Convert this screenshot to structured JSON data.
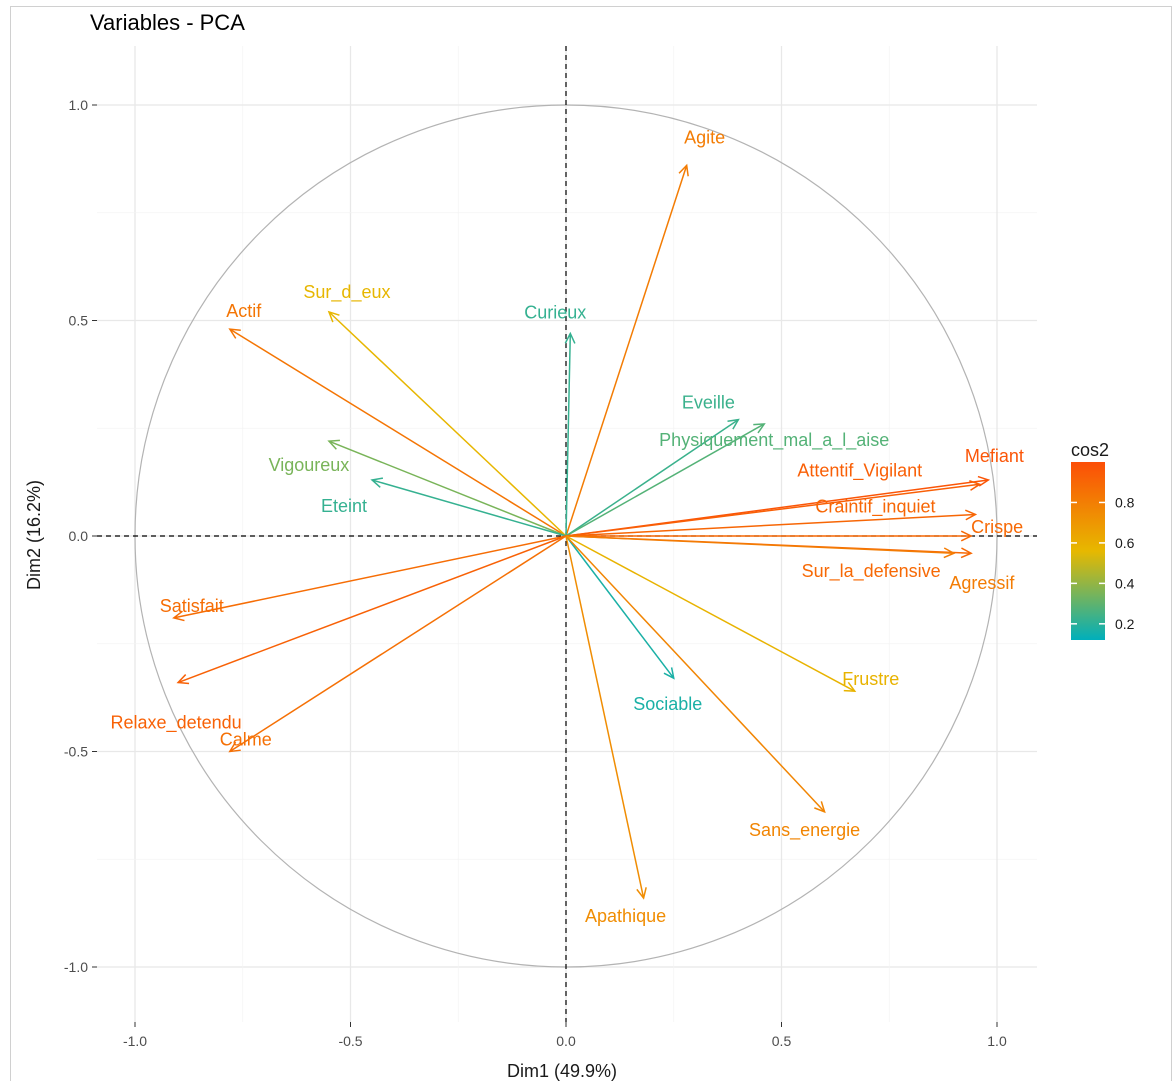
{
  "chart_data": {
    "type": "scatter",
    "title": "Variables - PCA",
    "xlabel": "Dim1 (49.9%)",
    "ylabel": "Dim2 (16.2%)",
    "xlim": [
      -1.0,
      1.0
    ],
    "ylim": [
      -1.0,
      1.0
    ],
    "x_ticks": [
      -1.0,
      -0.5,
      0.0,
      0.5,
      1.0
    ],
    "y_ticks": [
      -1.0,
      -0.5,
      0.0,
      0.5,
      1.0
    ],
    "x_tick_labels": [
      "-1.0",
      "-0.5",
      "0.0",
      "0.5",
      "1.0"
    ],
    "y_tick_labels": [
      "-1.0",
      "-0.5",
      "0.0",
      "0.5",
      "1.0"
    ],
    "grid": true,
    "correlation_circle": true,
    "legend": {
      "title": "cos2",
      "placement": "right",
      "ticks": [
        0.2,
        0.4,
        0.6,
        0.8
      ],
      "tick_labels": [
        "0.2",
        "0.4",
        "0.6",
        "0.8"
      ],
      "range": [
        0.12,
        1.0
      ],
      "colors": [
        "#00AFBB",
        "#E7B800",
        "#FC4E07"
      ]
    },
    "variables": [
      {
        "name": "Agite",
        "x": 0.28,
        "y": 0.86,
        "cos2": 0.81
      },
      {
        "name": "Actif",
        "x": -0.78,
        "y": 0.48,
        "cos2": 0.84
      },
      {
        "name": "Sur_d_eux",
        "x": -0.55,
        "y": 0.52,
        "cos2": 0.57
      },
      {
        "name": "Curieux",
        "x": 0.01,
        "y": 0.47,
        "cos2": 0.22
      },
      {
        "name": "Eveille",
        "x": 0.4,
        "y": 0.27,
        "cos2": 0.23
      },
      {
        "name": "Physiquement_mal_a_l_aise",
        "x": 0.46,
        "y": 0.26,
        "cos2": 0.28
      },
      {
        "name": "Vigoureux",
        "x": -0.55,
        "y": 0.22,
        "cos2": 0.35
      },
      {
        "name": "Eteint",
        "x": -0.45,
        "y": 0.13,
        "cos2": 0.22
      },
      {
        "name": "Mefiant",
        "x": 0.98,
        "y": 0.13,
        "cos2": 0.97
      },
      {
        "name": "Attentif_Vigilant",
        "x": 0.96,
        "y": 0.12,
        "cos2": 0.93
      },
      {
        "name": "Craintif_inquiet",
        "x": 0.95,
        "y": 0.05,
        "cos2": 0.9
      },
      {
        "name": "Crispe",
        "x": 0.94,
        "y": 0.0,
        "cos2": 0.89
      },
      {
        "name": "Sur_la_defensive",
        "x": 0.94,
        "y": -0.04,
        "cos2": 0.89
      },
      {
        "name": "Agressif",
        "x": 0.9,
        "y": -0.04,
        "cos2": 0.81
      },
      {
        "name": "Satisfait",
        "x": -0.91,
        "y": -0.19,
        "cos2": 0.87
      },
      {
        "name": "Relaxe_detendu",
        "x": -0.9,
        "y": -0.34,
        "cos2": 0.92
      },
      {
        "name": "Calme",
        "x": -0.78,
        "y": -0.5,
        "cos2": 0.86
      },
      {
        "name": "Sociable",
        "x": 0.25,
        "y": -0.33,
        "cos2": 0.17
      },
      {
        "name": "Frustre",
        "x": 0.67,
        "y": -0.36,
        "cos2": 0.58
      },
      {
        "name": "Sans_energie",
        "x": 0.6,
        "y": -0.64,
        "cos2": 0.77
      },
      {
        "name": "Apathique",
        "x": 0.18,
        "y": -0.84,
        "cos2": 0.74
      }
    ]
  }
}
